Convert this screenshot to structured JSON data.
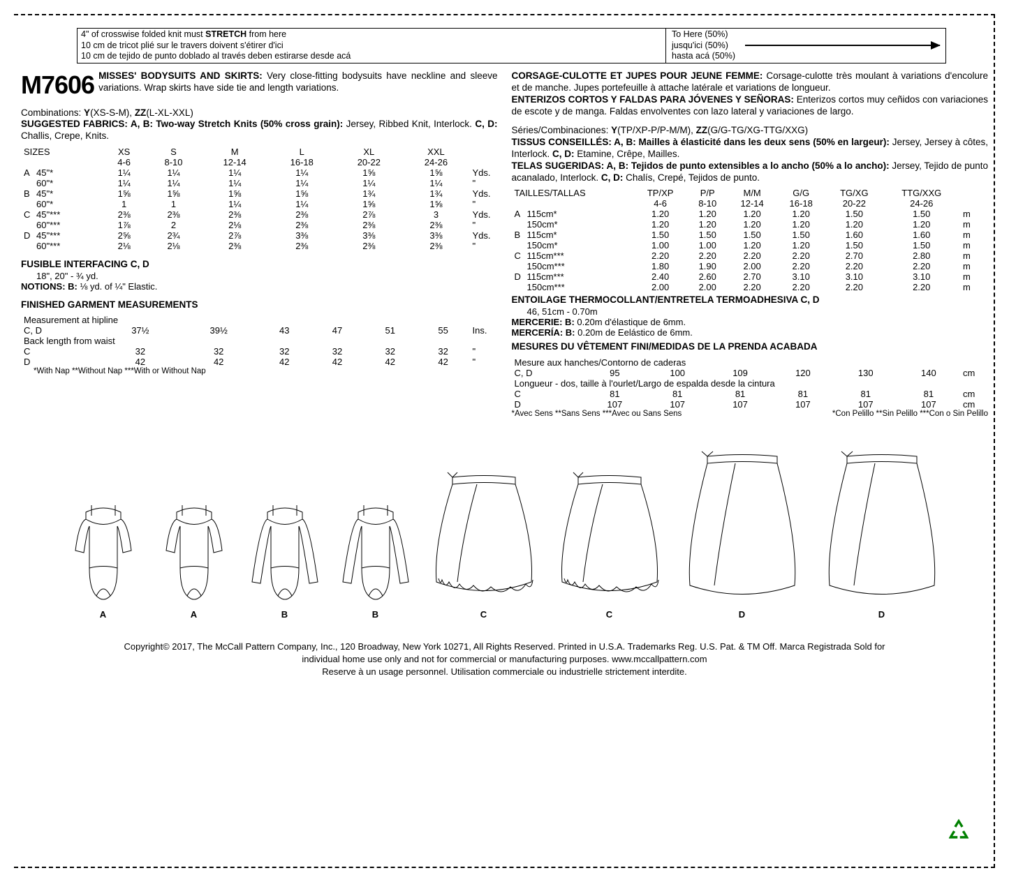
{
  "stretch_box": {
    "left_lines": [
      "4\" of crosswise folded knit must <b>STRETCH</b> from here",
      "10 cm de tricot plié sur le travers doivent s'étirer d'ici",
      "10 cm de tejido de punto doblado al través deben estirarse desde acá"
    ],
    "right_lines": [
      "To Here (50%)",
      "jusqu'ici (50%)",
      "hasta acá (50%)"
    ]
  },
  "pattern_number": "M7606",
  "desc_en_title": "MISSES' BODYSUITS AND SKIRTS:",
  "desc_en": " Very close-fitting bodysuits have neckline and sleeve variations. Wrap skirts have side tie and length variations.",
  "desc_fr_title": "CORSAGE-CULOTTE ET JUPES POUR JEUNE FEMME:",
  "desc_fr": " Corsage-culotte très moulant à variations d'encolure et de manche. Jupes portefeuille à attache latérale et variations de longueur.",
  "desc_es_title": "ENTERIZOS CORTOS Y FALDAS PARA JÓVENES Y SEÑORAS:",
  "desc_es": " Enterizos cortos muy ceñidos con variaciones de escote y de manga. Faldas envolventes con lazo lateral y variaciones de largo.",
  "combos_en": "Combinations: <b>Y</b>(XS-S-M), <b>ZZ</b>(L-XL-XXL)",
  "fabrics_en": "<b>SUGGESTED FABRICS: A, B: Two-way Stretch Knits (50% cross grain):</b> Jersey, Ribbed Knit, Interlock. <b>C, D:</b> Challis, Crepe, Knits.",
  "combos_fr": "Séries/Combinaciones: <b>Y</b>(TP/XP-P/P-M/M), <b>ZZ</b>(G/G-TG/XG-TTG/XXG)",
  "fabrics_fr": "<b>TISSUS CONSEILLÉS: A, B: Mailles à élasticité dans les deux sens (50% en largeur):</b> Jersey, Jersey à côtes, Interlock. <b>C, D:</b> Etamine, Crêpe, Mailles.",
  "fabrics_es": "<b>TELAS SUGERIDAS: A, B: Tejidos de punto extensibles a lo ancho (50% a lo ancho):</b> Jersey, Tejido de punto acanalado, Interlock. <b>C, D:</b> Chalís, Crepé, Tejidos de punto.",
  "sizes_en": {
    "header": "SIZES",
    "cols": [
      "XS",
      "S",
      "M",
      "L",
      "XL",
      "XXL",
      ""
    ],
    "sub": [
      "4-6",
      "8-10",
      "12-14",
      "16-18",
      "20-22",
      "24-26",
      ""
    ],
    "rows": [
      {
        "l": "A",
        "w": "45\"*",
        "v": [
          "1¼",
          "1¼",
          "1¼",
          "1¼",
          "1⅝",
          "1⅝"
        ],
        "u": "Yds."
      },
      {
        "l": "",
        "w": "60\"*",
        "v": [
          "1¼",
          "1¼",
          "1¼",
          "1¼",
          "1¼",
          "1¼"
        ],
        "u": "\""
      },
      {
        "l": "B",
        "w": "45\"*",
        "v": [
          "1⅝",
          "1⅝",
          "1⅝",
          "1⅝",
          "1¾",
          "1¾"
        ],
        "u": "Yds."
      },
      {
        "l": "",
        "w": "60\"*",
        "v": [
          "1",
          "1",
          "1¼",
          "1¼",
          "1⅝",
          "1⅝"
        ],
        "u": "\""
      },
      {
        "l": "C",
        "w": "45\"***",
        "v": [
          "2⅜",
          "2⅜",
          "2⅜",
          "2⅜",
          "2⅞",
          "3"
        ],
        "u": "Yds."
      },
      {
        "l": "",
        "w": "60\"***",
        "v": [
          "1⅞",
          "2",
          "2⅛",
          "2⅜",
          "2⅜",
          "2⅜"
        ],
        "u": "\""
      },
      {
        "l": "D",
        "w": "45\"***",
        "v": [
          "2⅝",
          "2¾",
          "2⅞",
          "3⅜",
          "3⅜",
          "3⅜"
        ],
        "u": "Yds."
      },
      {
        "l": "",
        "w": "60\"***",
        "v": [
          "2⅛",
          "2⅛",
          "2⅜",
          "2⅜",
          "2⅜",
          "2⅜"
        ],
        "u": "\""
      }
    ]
  },
  "sizes_m": {
    "header": "TAILLES/TALLAS",
    "cols": [
      "TP/XP",
      "P/P",
      "M/M",
      "G/G",
      "TG/XG",
      "TTG/XXG",
      ""
    ],
    "sub": [
      "4-6",
      "8-10",
      "12-14",
      "16-18",
      "20-22",
      "24-26",
      ""
    ],
    "rows": [
      {
        "l": "A",
        "w": "115cm*",
        "v": [
          "1.20",
          "1.20",
          "1.20",
          "1.20",
          "1.50",
          "1.50"
        ],
        "u": "m"
      },
      {
        "l": "",
        "w": "150cm*",
        "v": [
          "1.20",
          "1.20",
          "1.20",
          "1.20",
          "1.20",
          "1.20"
        ],
        "u": "m"
      },
      {
        "l": "B",
        "w": "115cm*",
        "v": [
          "1.50",
          "1.50",
          "1.50",
          "1.50",
          "1.60",
          "1.60"
        ],
        "u": "m"
      },
      {
        "l": "",
        "w": "150cm*",
        "v": [
          "1.00",
          "1.00",
          "1.20",
          "1.20",
          "1.50",
          "1.50"
        ],
        "u": "m"
      },
      {
        "l": "C",
        "w": "115cm***",
        "v": [
          "2.20",
          "2.20",
          "2.20",
          "2.20",
          "2.70",
          "2.80"
        ],
        "u": "m"
      },
      {
        "l": "",
        "w": "150cm***",
        "v": [
          "1.80",
          "1.90",
          "2.00",
          "2.20",
          "2.20",
          "2.20"
        ],
        "u": "m"
      },
      {
        "l": "D",
        "w": "115cm***",
        "v": [
          "2.40",
          "2.60",
          "2.70",
          "3.10",
          "3.10",
          "3.10"
        ],
        "u": "m"
      },
      {
        "l": "",
        "w": "150cm***",
        "v": [
          "2.00",
          "2.00",
          "2.20",
          "2.20",
          "2.20",
          "2.20"
        ],
        "u": "m"
      }
    ]
  },
  "interfacing_en": "<b>FUSIBLE INTERFACING C, D</b>",
  "interfacing_en_line": "18\", 20\" - ¾ yd.",
  "notions_en": "<b>NOTIONS: B:</b> ⅛ yd. of ¼\" Elastic.",
  "interfacing_fr": "<b>ENTOILAGE THERMOCOLLANT/ENTRETELA TERMOADHESIVA C, D</b>",
  "interfacing_fr_line": "46, 51cm - 0.70m",
  "notions_fr": "<b>MERCERIE: B:</b> 0.20m d'élastique de 6mm.",
  "notions_es": "<b>MERCERÍA: B:</b> 0.20m de Eelástico de 6mm.",
  "fgm_en_title": "FINISHED GARMENT MEASUREMENTS",
  "fgm_en_hip": "Measurement at hipline",
  "fgm_en_rows": [
    {
      "l": "C, D",
      "v": [
        "37½",
        "39½",
        "43",
        "47",
        "51",
        "55"
      ],
      "u": "Ins."
    }
  ],
  "fgm_en_back": "Back length from waist",
  "fgm_en_back_rows": [
    {
      "l": "C",
      "v": [
        "32",
        "32",
        "32",
        "32",
        "32",
        "32"
      ],
      "u": "\""
    },
    {
      "l": "D",
      "v": [
        "42",
        "42",
        "42",
        "42",
        "42",
        "42"
      ],
      "u": "\""
    }
  ],
  "fgm_fr_title": "MESURES DU VÊTEMENT FINI/MEDIDAS DE LA PRENDA ACABADA",
  "fgm_fr_hip": "Mesure aux hanches/Contorno de caderas",
  "fgm_fr_rows": [
    {
      "l": "C, D",
      "v": [
        "95",
        "100",
        "109",
        "120",
        "130",
        "140"
      ],
      "u": "cm"
    }
  ],
  "fgm_fr_back": "Longueur - dos, taille à l'ourlet/Largo de espalda desde la cintura",
  "fgm_fr_back_rows": [
    {
      "l": "C",
      "v": [
        "81",
        "81",
        "81",
        "81",
        "81",
        "81"
      ],
      "u": "cm"
    },
    {
      "l": "D",
      "v": [
        "107",
        "107",
        "107",
        "107",
        "107",
        "107"
      ],
      "u": "cm"
    }
  ],
  "nap_en": "*With Nap **Without Nap ***With or Without Nap",
  "nap_fr": "*Avec Sens **Sans Sens ***Avec ou Sans Sens",
  "nap_es": "*Con Pelillo **Sin Pelillo ***Con o Sin Pelillo",
  "illus_labels": [
    "A",
    "A",
    "B",
    "B",
    "C",
    "C",
    "D",
    "D"
  ],
  "footer1": "Copyright© 2017, The McCall Pattern Company, Inc., 120 Broadway, New York 10271, All Rights Reserved. Printed in U.S.A. Trademarks Reg. U.S. Pat. & TM Off. Marca Registrada  Sold for",
  "footer2": "individual home use only and not for commercial or manufacturing purposes. www.mccallpattern.com",
  "footer3": "Reserve à un usage personnel. Utilisation commerciale ou industrielle strictement interdite."
}
